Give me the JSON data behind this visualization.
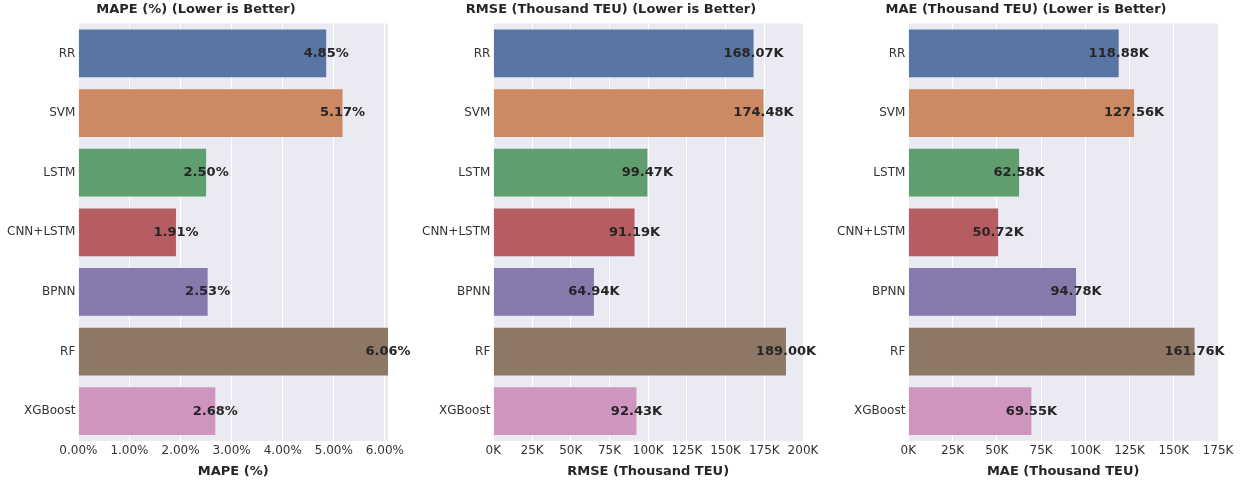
{
  "chart_data": [
    {
      "type": "bar",
      "orientation": "horizontal",
      "title": "MAPE (%) (Lower is Better)",
      "xlabel": "MAPE (%)",
      "grid": "x",
      "categories": [
        "RR",
        "SVM",
        "LSTM",
        "CNN+LSTM",
        "BPNN",
        "RF",
        "XGBoost"
      ],
      "values": [
        4.85,
        5.17,
        2.5,
        1.91,
        2.53,
        6.06,
        2.68
      ],
      "colors": [
        "#5975a4",
        "#cc8963",
        "#5f9e6e",
        "#b55d60",
        "#857aab",
        "#8d7866",
        "#d095bf"
      ],
      "value_labels": [
        "4.85%",
        "5.17%",
        "2.50%",
        "1.91%",
        "2.53%",
        "6.06%",
        "2.68%"
      ],
      "xlim": [
        0,
        6.06
      ],
      "xticks": [
        {
          "value": 0,
          "label": "0.00%"
        },
        {
          "value": 1,
          "label": "1.00%"
        },
        {
          "value": 2,
          "label": "2.00%"
        },
        {
          "value": 3,
          "label": "3.00%"
        },
        {
          "value": 4,
          "label": "4.00%"
        },
        {
          "value": 5,
          "label": "5.00%"
        },
        {
          "value": 6,
          "label": "6.00%"
        }
      ]
    },
    {
      "type": "bar",
      "orientation": "horizontal",
      "title": "RMSE (Thousand TEU) (Lower is Better)",
      "xlabel": "RMSE (Thousand TEU)",
      "grid": "x",
      "categories": [
        "RR",
        "SVM",
        "LSTM",
        "CNN+LSTM",
        "BPNN",
        "RF",
        "XGBoost"
      ],
      "values": [
        168.07,
        174.48,
        99.47,
        91.19,
        64.94,
        189.0,
        92.43
      ],
      "colors": [
        "#5975a4",
        "#cc8963",
        "#5f9e6e",
        "#b55d60",
        "#857aab",
        "#8d7866",
        "#d095bf"
      ],
      "value_labels": [
        "168.07K",
        "174.48K",
        "99.47K",
        "91.19K",
        "64.94K",
        "189.00K",
        "92.43K"
      ],
      "xlim": [
        0,
        200
      ],
      "xticks": [
        {
          "value": 0,
          "label": "0K"
        },
        {
          "value": 25,
          "label": "25K"
        },
        {
          "value": 50,
          "label": "50K"
        },
        {
          "value": 75,
          "label": "75K"
        },
        {
          "value": 100,
          "label": "100K"
        },
        {
          "value": 125,
          "label": "125K"
        },
        {
          "value": 150,
          "label": "150K"
        },
        {
          "value": 175,
          "label": "175K"
        },
        {
          "value": 200,
          "label": "200K"
        }
      ]
    },
    {
      "type": "bar",
      "orientation": "horizontal",
      "title": "MAE (Thousand TEU) (Lower is Better)",
      "xlabel": "MAE (Thousand TEU)",
      "grid": "x",
      "categories": [
        "RR",
        "SVM",
        "LSTM",
        "CNN+LSTM",
        "BPNN",
        "RF",
        "XGBoost"
      ],
      "values": [
        118.88,
        127.56,
        62.58,
        50.72,
        94.78,
        161.76,
        69.55
      ],
      "colors": [
        "#5975a4",
        "#cc8963",
        "#5f9e6e",
        "#b55d60",
        "#857aab",
        "#8d7866",
        "#d095bf"
      ],
      "value_labels": [
        "118.88K",
        "127.56K",
        "62.58K",
        "50.72K",
        "94.78K",
        "161.76K",
        "69.55K"
      ],
      "xlim": [
        0,
        175
      ],
      "xticks": [
        {
          "value": 0,
          "label": "0K"
        },
        {
          "value": 25,
          "label": "25K"
        },
        {
          "value": 50,
          "label": "50K"
        },
        {
          "value": 75,
          "label": "75K"
        },
        {
          "value": 100,
          "label": "100K"
        },
        {
          "value": 125,
          "label": "125K"
        },
        {
          "value": 150,
          "label": "150K"
        },
        {
          "value": 175,
          "label": "175K"
        }
      ]
    }
  ]
}
